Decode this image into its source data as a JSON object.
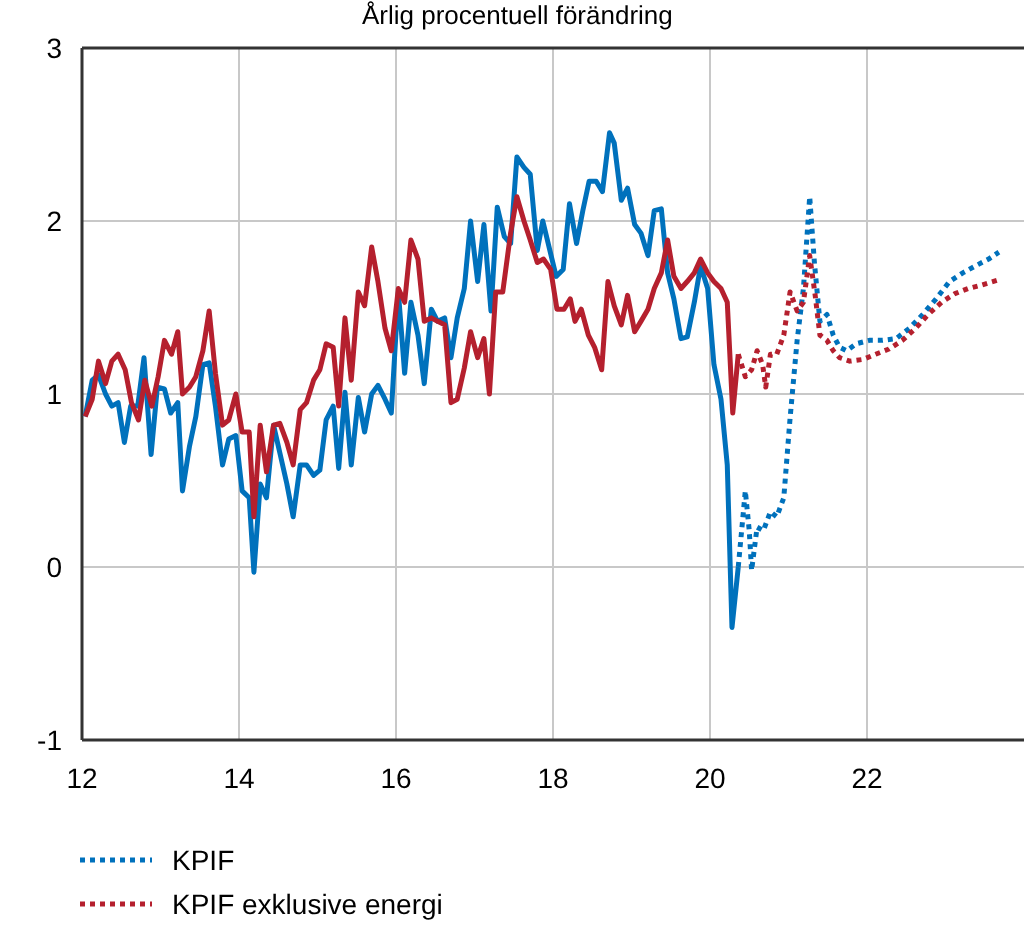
{
  "chart_data": {
    "type": "line",
    "title": "Årlig procentuell förändring",
    "xlim": [
      12,
      24
    ],
    "xticks": [
      12,
      14,
      16,
      18,
      20,
      22
    ],
    "ylim": [
      -1,
      3
    ],
    "yticks": [
      -1,
      0,
      1,
      2,
      3
    ],
    "grid": true,
    "legend": "bottom left",
    "series": [
      {
        "color": "#0071bc",
        "line_style": "solid",
        "x": [
          12.04,
          12.13,
          12.21,
          12.3,
          12.38,
          12.46,
          12.54,
          12.62,
          12.71,
          12.79,
          12.88,
          12.96,
          13.05,
          13.13,
          13.22,
          13.28,
          13.37,
          13.45,
          13.54,
          13.62,
          13.7,
          13.79,
          13.87,
          13.96,
          14.04,
          14.13,
          14.19,
          14.27,
          14.35,
          14.44,
          14.52,
          14.61,
          14.69,
          14.78,
          14.86,
          14.95,
          15.03,
          15.11,
          15.2,
          15.27,
          15.35,
          15.43,
          15.52,
          15.6,
          15.69,
          15.77,
          15.86,
          15.94,
          16.03,
          16.11,
          16.19,
          16.28,
          16.36,
          16.45,
          16.53,
          16.62,
          16.7,
          16.78,
          16.87,
          16.95,
          17.04,
          17.12,
          17.21,
          17.29,
          17.38,
          17.46,
          17.54,
          17.63,
          17.71,
          17.8,
          17.87,
          17.96,
          18.04,
          18.13,
          18.21,
          18.3,
          18.38,
          18.46,
          18.55,
          18.63,
          18.72,
          18.78,
          18.87,
          18.95,
          19.04,
          19.12,
          19.21,
          19.29,
          19.38,
          19.46,
          19.54,
          19.63,
          19.71,
          19.8,
          19.88,
          19.97,
          20.05,
          20.14,
          20.22,
          20.28,
          20.36
        ],
        "values": [
          0.87,
          1.08,
          1.11,
          1.0,
          0.93,
          0.95,
          0.72,
          0.93,
          0.93,
          1.21,
          0.65,
          1.04,
          1.03,
          0.89,
          0.95,
          0.44,
          0.7,
          0.87,
          1.17,
          1.18,
          0.93,
          0.59,
          0.74,
          0.76,
          0.44,
          0.4,
          -0.03,
          0.48,
          0.4,
          0.82,
          0.66,
          0.48,
          0.29,
          0.59,
          0.59,
          0.53,
          0.56,
          0.85,
          0.93,
          0.57,
          1.01,
          0.59,
          0.98,
          0.78,
          1.0,
          1.05,
          0.97,
          0.89,
          1.59,
          1.12,
          1.53,
          1.34,
          1.06,
          1.49,
          1.42,
          1.44,
          1.21,
          1.44,
          1.61,
          2.0,
          1.65,
          1.98,
          1.48,
          2.08,
          1.91,
          1.87,
          2.37,
          2.31,
          2.27,
          1.83,
          2.0,
          1.83,
          1.68,
          1.72,
          2.1,
          1.87,
          2.06,
          2.23,
          2.23,
          2.17,
          2.51,
          2.45,
          2.12,
          2.19,
          1.98,
          1.93,
          1.8,
          2.06,
          2.07,
          1.7,
          1.55,
          1.32,
          1.33,
          1.53,
          1.74,
          1.61,
          1.17,
          0.97,
          0.59,
          -0.35,
          0.0
        ]
      },
      {
        "color": "#b5202e",
        "line_style": "solid",
        "x": [
          12.04,
          12.13,
          12.21,
          12.3,
          12.38,
          12.46,
          12.55,
          12.63,
          12.72,
          12.8,
          12.89,
          12.97,
          13.05,
          13.14,
          13.22,
          13.28,
          13.37,
          13.45,
          13.54,
          13.62,
          13.7,
          13.79,
          13.87,
          13.96,
          14.04,
          14.13,
          14.19,
          14.27,
          14.35,
          14.44,
          14.52,
          14.61,
          14.69,
          14.78,
          14.86,
          14.95,
          15.03,
          15.11,
          15.2,
          15.27,
          15.35,
          15.43,
          15.52,
          15.6,
          15.69,
          15.77,
          15.86,
          15.94,
          16.03,
          16.11,
          16.19,
          16.28,
          16.36,
          16.45,
          16.53,
          16.62,
          16.7,
          16.78,
          16.87,
          16.95,
          17.04,
          17.12,
          17.19,
          17.27,
          17.36,
          17.46,
          17.54,
          17.63,
          17.71,
          17.8,
          17.88,
          17.97,
          18.05,
          18.14,
          18.22,
          18.28,
          18.36,
          18.45,
          18.53,
          18.62,
          18.7,
          18.78,
          18.87,
          18.95,
          19.04,
          19.12,
          19.21,
          19.29,
          19.38,
          19.46,
          19.54,
          19.63,
          19.71,
          19.8,
          19.88,
          19.97,
          20.05,
          20.14,
          20.22,
          20.29,
          20.36
        ],
        "values": [
          0.87,
          0.97,
          1.19,
          1.06,
          1.19,
          1.23,
          1.14,
          0.95,
          0.85,
          1.08,
          0.93,
          1.1,
          1.31,
          1.23,
          1.36,
          1.0,
          1.04,
          1.1,
          1.25,
          1.48,
          1.12,
          0.82,
          0.85,
          1.0,
          0.78,
          0.78,
          0.29,
          0.82,
          0.55,
          0.82,
          0.83,
          0.72,
          0.59,
          0.91,
          0.95,
          1.08,
          1.14,
          1.29,
          1.27,
          0.93,
          1.44,
          1.08,
          1.59,
          1.51,
          1.85,
          1.65,
          1.38,
          1.25,
          1.61,
          1.53,
          1.89,
          1.78,
          1.42,
          1.44,
          1.42,
          1.4,
          0.95,
          0.97,
          1.15,
          1.36,
          1.21,
          1.32,
          1.0,
          1.59,
          1.59,
          1.93,
          2.14,
          2.0,
          1.89,
          1.76,
          1.78,
          1.72,
          1.49,
          1.49,
          1.55,
          1.42,
          1.49,
          1.34,
          1.27,
          1.14,
          1.65,
          1.51,
          1.4,
          1.57,
          1.36,
          1.42,
          1.49,
          1.61,
          1.7,
          1.89,
          1.68,
          1.61,
          1.65,
          1.7,
          1.78,
          1.7,
          1.65,
          1.61,
          1.53,
          0.89,
          1.23
        ]
      },
      {
        "name": "KPIF",
        "color": "#0071bc",
        "line_style": "dotted",
        "x": [
          20.36,
          20.45,
          20.5,
          20.53,
          20.6,
          20.68,
          20.77,
          20.85,
          20.94,
          21.02,
          21.11,
          21.19,
          21.27,
          21.33,
          21.4,
          21.49,
          21.57,
          21.65,
          21.74,
          21.86,
          22.03,
          22.2,
          22.37,
          22.54,
          22.71,
          22.88,
          23.05,
          23.22,
          23.38,
          23.55,
          23.68
        ],
        "values": [
          0.0,
          0.44,
          0.21,
          -0.02,
          0.23,
          0.21,
          0.32,
          0.29,
          0.4,
          0.86,
          1.31,
          1.61,
          2.14,
          1.76,
          1.42,
          1.46,
          1.34,
          1.27,
          1.25,
          1.29,
          1.31,
          1.31,
          1.32,
          1.38,
          1.46,
          1.55,
          1.65,
          1.7,
          1.74,
          1.78,
          1.82
        ]
      },
      {
        "name": "KPIF exklusive energi",
        "color": "#b5202e",
        "line_style": "dotted",
        "x": [
          20.36,
          20.45,
          20.53,
          20.6,
          20.67,
          20.71,
          20.77,
          20.85,
          20.94,
          21.02,
          21.11,
          21.19,
          21.27,
          21.34,
          21.4,
          21.49,
          21.57,
          21.65,
          21.78,
          21.95,
          22.11,
          22.28,
          22.45,
          22.62,
          22.78,
          22.95,
          23.12,
          23.29,
          23.46,
          23.68
        ],
        "values": [
          1.23,
          1.1,
          1.14,
          1.25,
          1.17,
          1.04,
          1.23,
          1.23,
          1.34,
          1.59,
          1.48,
          1.53,
          1.8,
          1.57,
          1.34,
          1.31,
          1.25,
          1.21,
          1.19,
          1.2,
          1.23,
          1.26,
          1.31,
          1.38,
          1.46,
          1.53,
          1.58,
          1.61,
          1.63,
          1.66
        ]
      }
    ]
  }
}
